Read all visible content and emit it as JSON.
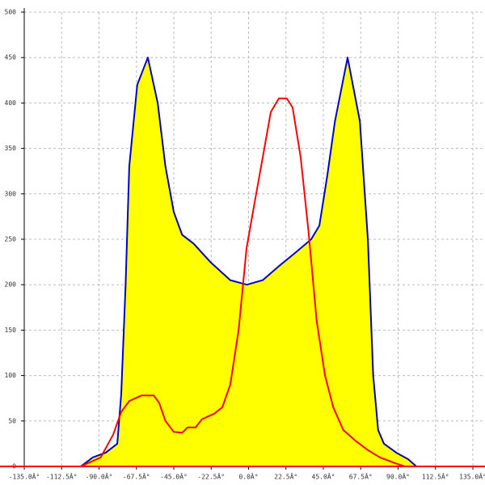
{
  "chart_data": {
    "type": "line",
    "xlim": [
      -135,
      135
    ],
    "ylim": [
      0,
      500
    ],
    "xticks": [
      {
        "value": -135,
        "label": "-135.0Â°"
      },
      {
        "value": -112.5,
        "label": "-112.5Â°"
      },
      {
        "value": -90,
        "label": "-90.0Â°"
      },
      {
        "value": -67.5,
        "label": "-67.5Â°"
      },
      {
        "value": -45,
        "label": "-45.0Â°"
      },
      {
        "value": -22.5,
        "label": "-22.5Â°"
      },
      {
        "value": 0,
        "label": "0.0Â°"
      },
      {
        "value": 22.5,
        "label": "22.5Â°"
      },
      {
        "value": 45,
        "label": "45.0Â°"
      },
      {
        "value": 67.5,
        "label": "67.5Â°"
      },
      {
        "value": 90,
        "label": "90.0Â°"
      },
      {
        "value": 112.5,
        "label": "112.5Â°"
      },
      {
        "value": 135,
        "label": "135.0Â°"
      }
    ],
    "yticks": [
      0,
      50,
      100,
      150,
      200,
      250,
      300,
      350,
      400,
      450,
      500
    ],
    "grid": true,
    "series": [
      {
        "color": "#0000cc",
        "fill": "#ffff00",
        "x": [
          -101,
          -93.7,
          -86,
          -79,
          -76.6,
          -74,
          -71.8,
          -67,
          -60.6,
          -54.7,
          -50,
          -45,
          -40,
          -33,
          -23,
          -11,
          -1,
          8.5,
          18,
          28,
          37.7,
          42.6,
          47.4,
          52,
          59.6,
          67,
          71.8,
          75,
          78,
          81.5,
          89,
          96,
          101
        ],
        "values": [
          0,
          10,
          15,
          25,
          80,
          200,
          330,
          420,
          450,
          400,
          330,
          280,
          255,
          245,
          225,
          205,
          200,
          205,
          220,
          235,
          250,
          265,
          320,
          380,
          450,
          380,
          250,
          100,
          40,
          25,
          15,
          8,
          0
        ]
      },
      {
        "color": "#ff0000",
        "x": [
          -101,
          -89,
          -81.5,
          -76.6,
          -71.8,
          -64.5,
          -57,
          -53.8,
          -50,
          -45,
          -40,
          -36.7,
          -31.9,
          -28,
          -20.7,
          -15.8,
          -11,
          -6,
          -1.2,
          3.6,
          8.5,
          13.4,
          18.2,
          23,
          26.5,
          31.4,
          36,
          41,
          46,
          51,
          57,
          64.5,
          71.8,
          79,
          89,
          94
        ],
        "values": [
          0,
          10,
          35,
          60,
          72,
          78,
          78,
          70,
          50,
          38,
          37,
          43,
          43,
          52,
          58,
          65,
          90,
          150,
          240,
          290,
          340,
          390,
          405,
          405,
          395,
          340,
          260,
          160,
          100,
          65,
          40,
          28,
          18,
          10,
          3,
          0
        ]
      }
    ]
  }
}
